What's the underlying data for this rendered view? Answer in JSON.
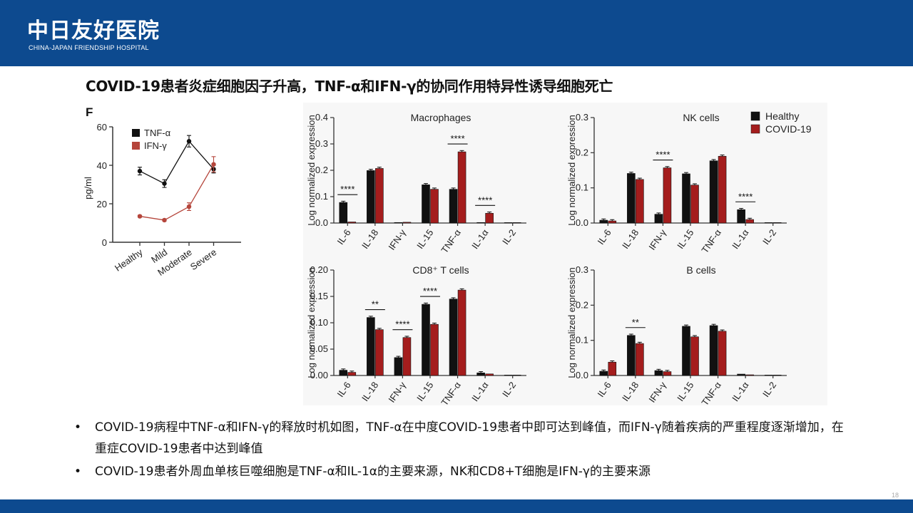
{
  "header": {
    "logo_cn": "中日友好医院",
    "logo_en": "CHINA-JAPAN FRIENDSHIP HOSPITAL"
  },
  "title": "COVID-19患者炎症细胞因子升高，TNF-α和IFN-γ的协同作用特异性诱导细胞死亡",
  "colors": {
    "header": "#0d4a8f",
    "healthy": "#111111",
    "covid": "#a41d1d",
    "ifn_line": "#b5453b"
  },
  "chart_data": [
    {
      "type": "line",
      "panel_label": "F",
      "categories": [
        "Healthy",
        "Mild",
        "Moderate",
        "Severe"
      ],
      "ylabel": "pg/ml",
      "ylim": [
        0,
        60
      ],
      "yticks": [
        "0",
        "20",
        "40",
        "60"
      ],
      "legend": [
        "TNF-α",
        "IFN-γ"
      ],
      "series": [
        {
          "name": "TNF-α",
          "values": [
            37,
            30.5,
            52.5,
            38
          ],
          "errors": [
            2,
            2,
            3,
            2
          ]
        },
        {
          "name": "IFN-γ",
          "values": [
            13.5,
            11.5,
            18.5,
            40.5
          ],
          "errors": [
            0.5,
            0.5,
            2,
            4
          ]
        }
      ]
    },
    {
      "type": "bar",
      "title": "Macrophages",
      "categories": [
        "IL-6",
        "IL-18",
        "IFN-γ",
        "IL-15",
        "TNF-α",
        "IL-1α",
        "IL-2"
      ],
      "ylabel": "Log normalized expression",
      "ylim": [
        0,
        0.4
      ],
      "yticks": [
        "0.0",
        "0.1",
        "0.2",
        "0.3",
        "0.4"
      ],
      "series": [
        {
          "name": "Healthy",
          "values": [
            0.078,
            0.199,
            0.002,
            0.145,
            0.128,
            0.002,
            0
          ]
        },
        {
          "name": "COVID-19",
          "values": [
            0.004,
            0.207,
            0.003,
            0.128,
            0.27,
            0.037,
            0
          ]
        }
      ],
      "significance": [
        {
          "index": 0,
          "text": "****"
        },
        {
          "index": 4,
          "text": "****"
        },
        {
          "index": 5,
          "text": "****"
        }
      ]
    },
    {
      "type": "bar",
      "title": "NK cells",
      "categories": [
        "IL-6",
        "IL-18",
        "IFN-γ",
        "IL-15",
        "TNF-α",
        "IL-1α",
        "IL-2"
      ],
      "ylabel": "Log normalized expression",
      "ylim": [
        0,
        0.3
      ],
      "yticks": [
        "0.0",
        "0.1",
        "0.2",
        "0.3"
      ],
      "legend": [
        "Healthy",
        "COVID-19"
      ],
      "series": [
        {
          "name": "Healthy",
          "values": [
            0.008,
            0.141,
            0.025,
            0.14,
            0.177,
            0.038,
            0
          ]
        },
        {
          "name": "COVID-19",
          "values": [
            0.006,
            0.124,
            0.157,
            0.108,
            0.19,
            0.01,
            0
          ]
        }
      ],
      "significance": [
        {
          "index": 2,
          "text": "****"
        },
        {
          "index": 5,
          "text": "****"
        }
      ]
    },
    {
      "type": "bar",
      "title": "CD8⁺ T cells",
      "categories": [
        "IL-6",
        "IL-18",
        "IFN-γ",
        "IL-15",
        "TNF-α",
        "IL-1α",
        "IL-2"
      ],
      "ylabel": "Log normalized expression",
      "ylim": [
        0,
        0.2
      ],
      "yticks": [
        "0.00",
        "0.05",
        "0.10",
        "0.15",
        "0.20"
      ],
      "series": [
        {
          "name": "Healthy",
          "values": [
            0.01,
            0.11,
            0.034,
            0.135,
            0.145,
            0.005,
            0
          ]
        },
        {
          "name": "COVID-19",
          "values": [
            0.006,
            0.087,
            0.072,
            0.097,
            0.162,
            0.003,
            0
          ]
        }
      ],
      "significance": [
        {
          "index": 1,
          "text": "**"
        },
        {
          "index": 2,
          "text": "****"
        },
        {
          "index": 3,
          "text": "****"
        }
      ]
    },
    {
      "type": "bar",
      "title": "B cells",
      "categories": [
        "IL-6",
        "IL-18",
        "IFN-γ",
        "IL-15",
        "TNF-α",
        "IL-1α",
        "IL-2"
      ],
      "ylabel": "Log normalized expression",
      "ylim": [
        0,
        0.3
      ],
      "yticks": [
        "0.0",
        "0.1",
        "0.2",
        "0.3"
      ],
      "series": [
        {
          "name": "Healthy",
          "values": [
            0.012,
            0.114,
            0.014,
            0.14,
            0.142,
            0.004,
            0
          ]
        },
        {
          "name": "COVID-19",
          "values": [
            0.038,
            0.091,
            0.011,
            0.11,
            0.126,
            0.002,
            0
          ]
        }
      ],
      "significance": [
        {
          "index": 1,
          "text": "**"
        }
      ]
    }
  ],
  "bullets": [
    "COVID-19病程中TNF-α和IFN-γ的释放时机如图，TNF-α在中度COVID-19患者中即可达到峰值，而IFN-γ随着疾病的严重程度逐渐增加，在重症COVID-19患者中达到峰值",
    "COVID-19患者外周血单核巨噬细胞是TNF-α和IL-1α的主要来源，NK和CD8+T细胞是IFN-γ的主要来源"
  ],
  "bullet_symbol": "•",
  "page_number": "18"
}
